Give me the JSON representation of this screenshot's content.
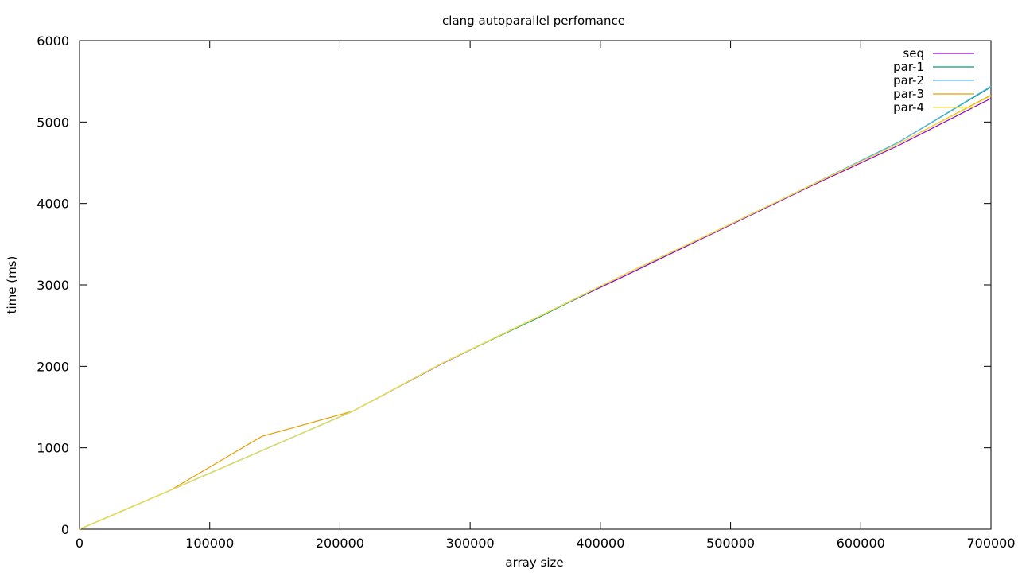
{
  "chart_data": {
    "type": "line",
    "title": "clang autoparallel perfomance",
    "xlabel": "array size",
    "ylabel": "time (ms)",
    "xlim": [
      0,
      700000
    ],
    "ylim": [
      0,
      6000
    ],
    "x_ticks": [
      0,
      100000,
      200000,
      300000,
      400000,
      500000,
      600000,
      700000
    ],
    "x_tick_labels": [
      "0",
      "100000",
      "200000",
      "300000",
      "400000",
      "500000",
      "600000",
      "700000"
    ],
    "y_ticks": [
      0,
      1000,
      2000,
      3000,
      4000,
      5000,
      6000
    ],
    "y_tick_labels": [
      "0",
      "1000",
      "2000",
      "3000",
      "4000",
      "5000",
      "6000"
    ],
    "grid": false,
    "legend_position": "top-right",
    "x": [
      0,
      70000,
      140000,
      210000,
      280000,
      350000,
      420000,
      490000,
      560000,
      630000,
      700000
    ],
    "series": [
      {
        "name": "seq",
        "color": "#9400d3",
        "values": [
          0,
          480,
          965,
          1450,
          2045,
          2590,
          3120,
          3660,
          4200,
          4720,
          5290
        ]
      },
      {
        "name": "par-1",
        "color": "#009e73",
        "values": [
          0,
          480,
          965,
          1450,
          2050,
          2580,
          3140,
          3670,
          4210,
          4760,
          5430
        ]
      },
      {
        "name": "par-2",
        "color": "#56b4e9",
        "values": [
          0,
          480,
          965,
          1450,
          2050,
          2590,
          3140,
          3670,
          4210,
          4760,
          5440
        ]
      },
      {
        "name": "par-3",
        "color": "#e69f00",
        "values": [
          0,
          480,
          1140,
          1450,
          2050,
          2590,
          3140,
          3670,
          4210,
          4740,
          5330
        ]
      },
      {
        "name": "par-4",
        "color": "#f0e442",
        "values": [
          0,
          480,
          965,
          1450,
          2050,
          2590,
          3140,
          3670,
          4210,
          4740,
          5320
        ]
      }
    ]
  }
}
